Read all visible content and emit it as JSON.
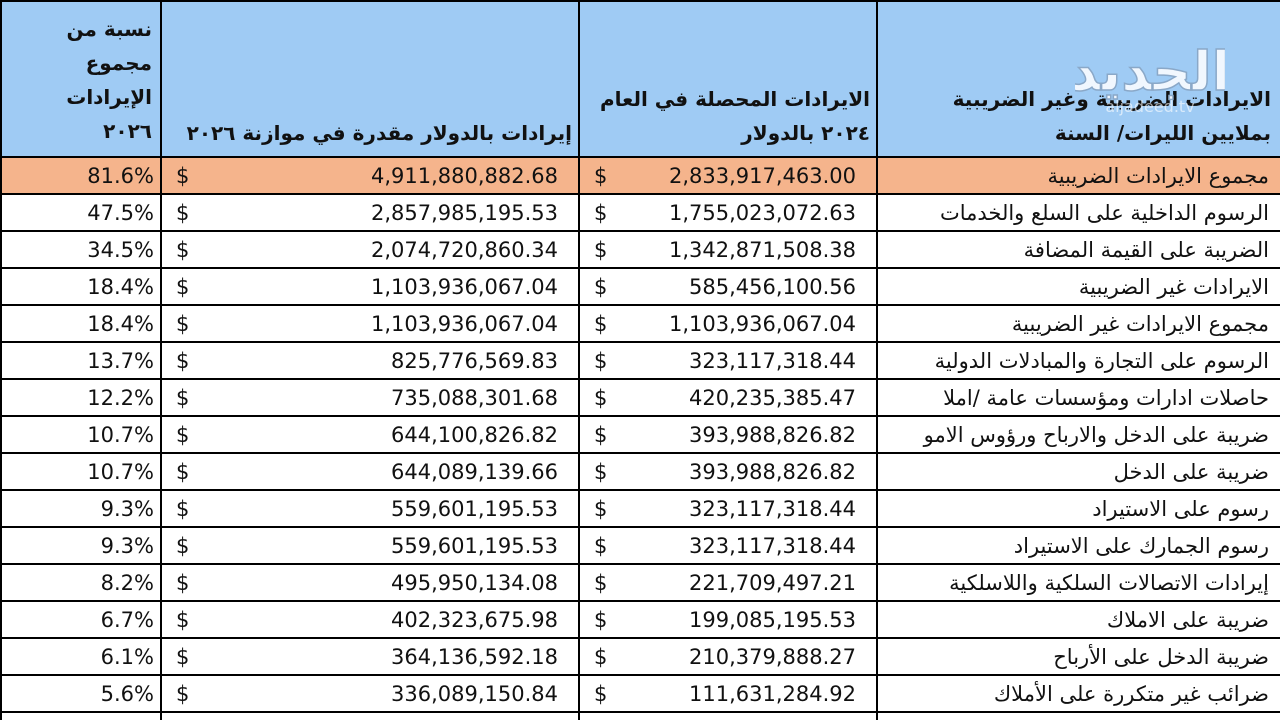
{
  "header": {
    "pct": [
      "نسبة من",
      "مجموع",
      "الإيرادات",
      "٢٠٢٦"
    ],
    "usd_2026": "إيرادات بالدولار مقدرة في موازنة ٢٠٢٦",
    "usd_2024": [
      "الايرادات المحصلة في العام",
      "٢٠٢٤ بالدولار"
    ],
    "label": [
      "الايرادات الضريبية وغير الضريبية",
      "بملايين الليرات/ السنة"
    ]
  },
  "currency_symbol": "$",
  "rows": [
    {
      "label": "مجموع الايرادات الضريبية",
      "usd_2024": "2,833,917,463.00",
      "usd_2026": "4,911,880,882.68",
      "pct": "81.6%"
    },
    {
      "label": "الرسوم الداخلية على السلع والخدمات",
      "usd_2024": "1,755,023,072.63",
      "usd_2026": "2,857,985,195.53",
      "pct": "47.5%"
    },
    {
      "label": "الضريبة على القيمة المضافة",
      "usd_2024": "1,342,871,508.38",
      "usd_2026": "2,074,720,860.34",
      "pct": "34.5%"
    },
    {
      "label": "الايرادات غير الضريبية",
      "usd_2024": "585,456,100.56",
      "usd_2026": "1,103,936,067.04",
      "pct": "18.4%"
    },
    {
      "label": "مجموع الايرادات غير الضريبية",
      "usd_2024": "1,103,936,067.04",
      "usd_2026": "1,103,936,067.04",
      "pct": "18.4%"
    },
    {
      "label": "الرسوم على التجارة والمبادلات الدولية",
      "usd_2024": "323,117,318.44",
      "usd_2026": "825,776,569.83",
      "pct": "13.7%"
    },
    {
      "label": "حاصلات ادارات ومؤسسات عامة /املا",
      "usd_2024": "420,235,385.47",
      "usd_2026": "735,088,301.68",
      "pct": "12.2%"
    },
    {
      "label": "ضريبة على الدخل والارباح ورؤوس الامو",
      "usd_2024": "393,988,826.82",
      "usd_2026": "644,100,826.82",
      "pct": "10.7%"
    },
    {
      "label": "ضريبة على الدخل",
      "usd_2024": "393,988,826.82",
      "usd_2026": "644,089,139.66",
      "pct": "10.7%"
    },
    {
      "label": "رسوم على الاستيراد",
      "usd_2024": "323,117,318.44",
      "usd_2026": "559,601,195.53",
      "pct": "9.3%"
    },
    {
      "label": "رسوم الجمارك على الاستيراد",
      "usd_2024": "323,117,318.44",
      "usd_2026": "559,601,195.53",
      "pct": "9.3%"
    },
    {
      "label": "إيرادات الاتصالات السلكية واللاسلكية",
      "usd_2024": "221,709,497.21",
      "usd_2026": "495,950,134.08",
      "pct": "8.2%"
    },
    {
      "label": "ضريبة على الاملاك",
      "usd_2024": "199,085,195.53",
      "usd_2026": "402,323,675.98",
      "pct": "6.7%"
    },
    {
      "label": "ضريبة الدخل على الأرباح",
      "usd_2024": "210,379,888.27",
      "usd_2026": "364,136,592.18",
      "pct": "6.1%"
    },
    {
      "label": "ضرائب غير متكررة على الأملاك",
      "usd_2024": "111,631,284.92",
      "usd_2026": "336,089,150.84",
      "pct": "5.6%"
    },
    {
      "label": "",
      "usd_2024": "",
      "usd_2026": "",
      "pct": ""
    }
  ],
  "logo": {
    "text": "الجديد",
    "url": "aljadeed.tv"
  },
  "colors": {
    "header_bg": "#9fcbf4",
    "highlight_row_bg": "#f5b48c",
    "border": "#000000"
  }
}
